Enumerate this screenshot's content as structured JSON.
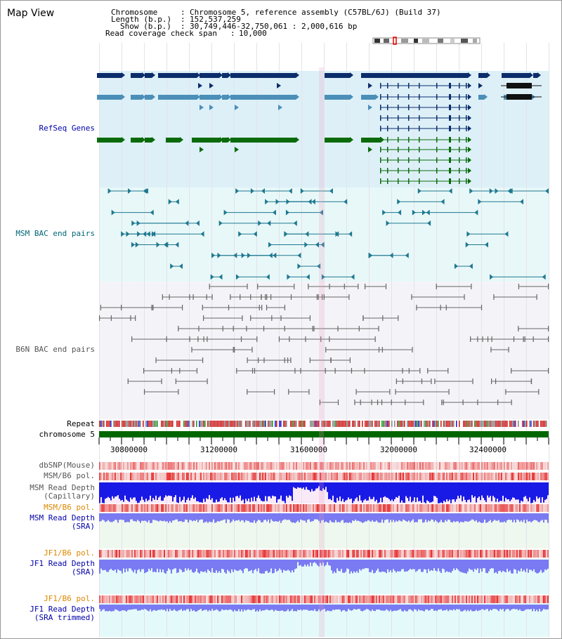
{
  "title": "Map View",
  "header": {
    "chromosome_key": "Chromosome",
    "chromosome_value": "Chromosome 5, reference assembly (C57BL/6J) (Build 37)",
    "length_key": "Length (b.p.)",
    "length_value": "152,537,259",
    "show_key": "Show (b.p.)",
    "show_value": "30,749,446-32,750,061 : 2,000,616 bp",
    "coverage_key": "Read coverage check span",
    "coverage_value": "10,000"
  },
  "tracks": {
    "refseq": "RefSeq Genes",
    "msm_bac": "MSM BAC end pairs",
    "b6n_bac": "B6N BAC end pairs",
    "repeat": "Repeat",
    "chromosome": "chromosome 5",
    "dbsnp": "dbSNP(Mouse)",
    "msm_b6_pol_1": "MSM/B6 pol.",
    "msm_depth_cap_1": "MSM Read Depth",
    "msm_depth_cap_2": "(Capillary)",
    "msm_b6_pol_2": "MSM/B6 pol.",
    "msm_depth_sra_1": "MSM Read Depth",
    "msm_depth_sra_2": "(SRA)",
    "jf1_b6_pol_1": "JF1/B6 pol.",
    "jf1_depth_sra_1": "JF1 Read Depth",
    "jf1_depth_sra_2": "(SRA)",
    "jf1_b6_pol_2": "JF1/B6 pol.",
    "jf1_depth_trim_1": "JF1 Read Depth",
    "jf1_depth_trim_2": "(SRA trimmed)"
  },
  "axis": {
    "ticks": [
      "30800000",
      "31200000",
      "31600000",
      "32000000",
      "32400000"
    ],
    "range": [
      30749446,
      32750061
    ]
  },
  "colors": {
    "label_blue": "#0000aa",
    "label_teal": "#006677",
    "label_gray": "#555555",
    "label_orange": "#dd8800",
    "refseq_bg": "#ddf0f8",
    "msm_bg": "#e8f8f8",
    "b6n_bg": "#f4f4f8",
    "gene_dark": "#0c2d6b",
    "gene_mid": "#4b8fb8",
    "gene_green": "#0b6b0b",
    "bac_teal": "#1f7890",
    "bac_gray": "#666666",
    "chromosome_bar": "#006600",
    "depth_blue": "#1a1ae6",
    "depth_light": "#7a7af2"
  }
}
